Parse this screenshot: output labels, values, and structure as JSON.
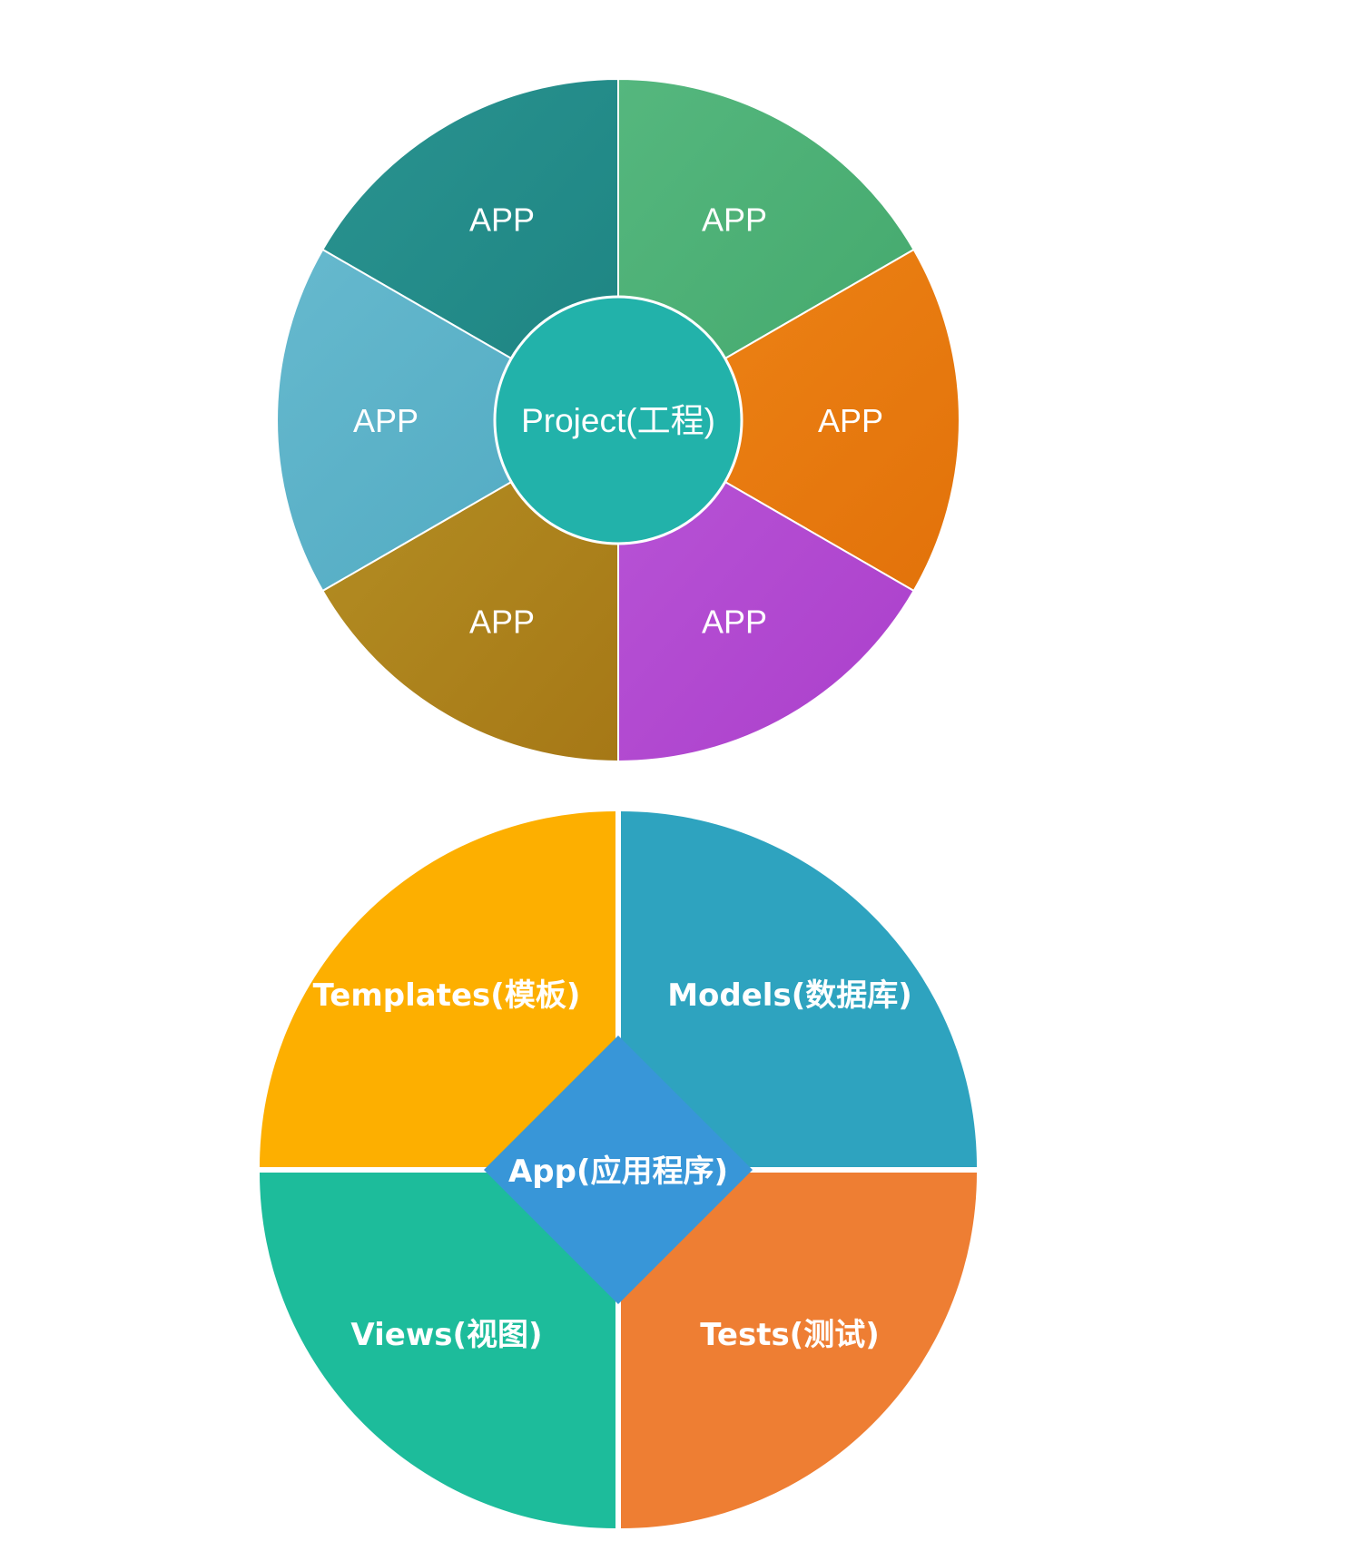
{
  "project_wheel": {
    "center_label": "Project(工程)",
    "center_color": "#22b2aa",
    "segments": [
      {
        "label": "APP",
        "color_a": "#2a9390",
        "color_b": "#1d8482",
        "icon": ""
      },
      {
        "label": "APP",
        "color_a": "#55b77e",
        "color_b": "#43a86c",
        "icon": ""
      },
      {
        "label": "APP",
        "color_a": "#ee8416",
        "color_b": "#e2720a",
        "icon": ""
      },
      {
        "label": "APP",
        "color_a": "#b854d6",
        "color_b": "#ab3fcb",
        "icon": ""
      },
      {
        "label": "APP",
        "color_a": "#b48f24",
        "color_b": "#a67816",
        "icon": ""
      },
      {
        "label": "APP",
        "color_a": "#66b9ce",
        "color_b": "#4fa9c1",
        "icon": ""
      }
    ]
  },
  "app_wheel": {
    "center_label": "App(应用程序)",
    "center_color": "#3896d8",
    "quadrants": [
      {
        "label": "Models(数据库)",
        "color": "#2ea3bf"
      },
      {
        "label": "Tests(测试)",
        "color": "#ee7e33"
      },
      {
        "label": "Views(视图)",
        "color": "#1dbc9b"
      },
      {
        "label": "Templates(模板)",
        "color": "#fdaf00"
      }
    ]
  }
}
